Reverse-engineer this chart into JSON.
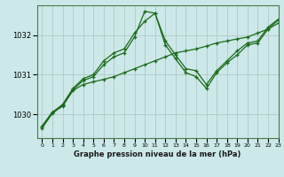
{
  "background_color": "#cce8e8",
  "plot_bg_color": "#cce8e8",
  "grid_color": "#b0c8c8",
  "line_color": "#1a6b1a",
  "xlabel": "Graphe pression niveau de la mer (hPa)",
  "xlim": [
    -0.5,
    23
  ],
  "ylim": [
    1029.4,
    1032.75
  ],
  "yticks": [
    1030,
    1031,
    1032
  ],
  "xticks": [
    0,
    1,
    2,
    3,
    4,
    5,
    6,
    7,
    8,
    9,
    10,
    11,
    12,
    13,
    14,
    15,
    16,
    17,
    18,
    19,
    20,
    21,
    22,
    23
  ],
  "line1_x": [
    0,
    1,
    2,
    3,
    4,
    5,
    6,
    7,
    8,
    9,
    10,
    11,
    12,
    13,
    14,
    15,
    16,
    17,
    18,
    19,
    20,
    21,
    22,
    23
  ],
  "line1_y": [
    1029.7,
    1030.05,
    1030.2,
    1030.6,
    1030.75,
    1030.82,
    1030.88,
    1030.95,
    1031.05,
    1031.15,
    1031.25,
    1031.35,
    1031.45,
    1031.55,
    1031.6,
    1031.65,
    1031.72,
    1031.8,
    1031.85,
    1031.9,
    1031.95,
    1032.05,
    1032.15,
    1032.3
  ],
  "line2_x": [
    0,
    1,
    2,
    3,
    4,
    5,
    6,
    7,
    8,
    9,
    10,
    11,
    12,
    13,
    14,
    15,
    16,
    17,
    18,
    19,
    20,
    21,
    22,
    23
  ],
  "line2_y": [
    1029.7,
    1030.05,
    1030.25,
    1030.65,
    1030.9,
    1031.0,
    1031.35,
    1031.55,
    1031.65,
    1032.05,
    1032.35,
    1032.55,
    1031.85,
    1031.5,
    1031.15,
    1031.1,
    1030.75,
    1031.1,
    1031.35,
    1031.6,
    1031.8,
    1031.85,
    1032.2,
    1032.4
  ],
  "line3_x": [
    0,
    1,
    2,
    3,
    4,
    5,
    6,
    7,
    8,
    9,
    10,
    11,
    12,
    13,
    14,
    15,
    16,
    17,
    18,
    19,
    20,
    21,
    22,
    23
  ],
  "line3_y": [
    1029.65,
    1030.02,
    1030.22,
    1030.62,
    1030.85,
    1030.95,
    1031.25,
    1031.45,
    1031.55,
    1031.95,
    1032.6,
    1032.55,
    1031.75,
    1031.4,
    1031.05,
    1030.95,
    1030.65,
    1031.05,
    1031.3,
    1031.5,
    1031.75,
    1031.8,
    1032.15,
    1032.38
  ]
}
